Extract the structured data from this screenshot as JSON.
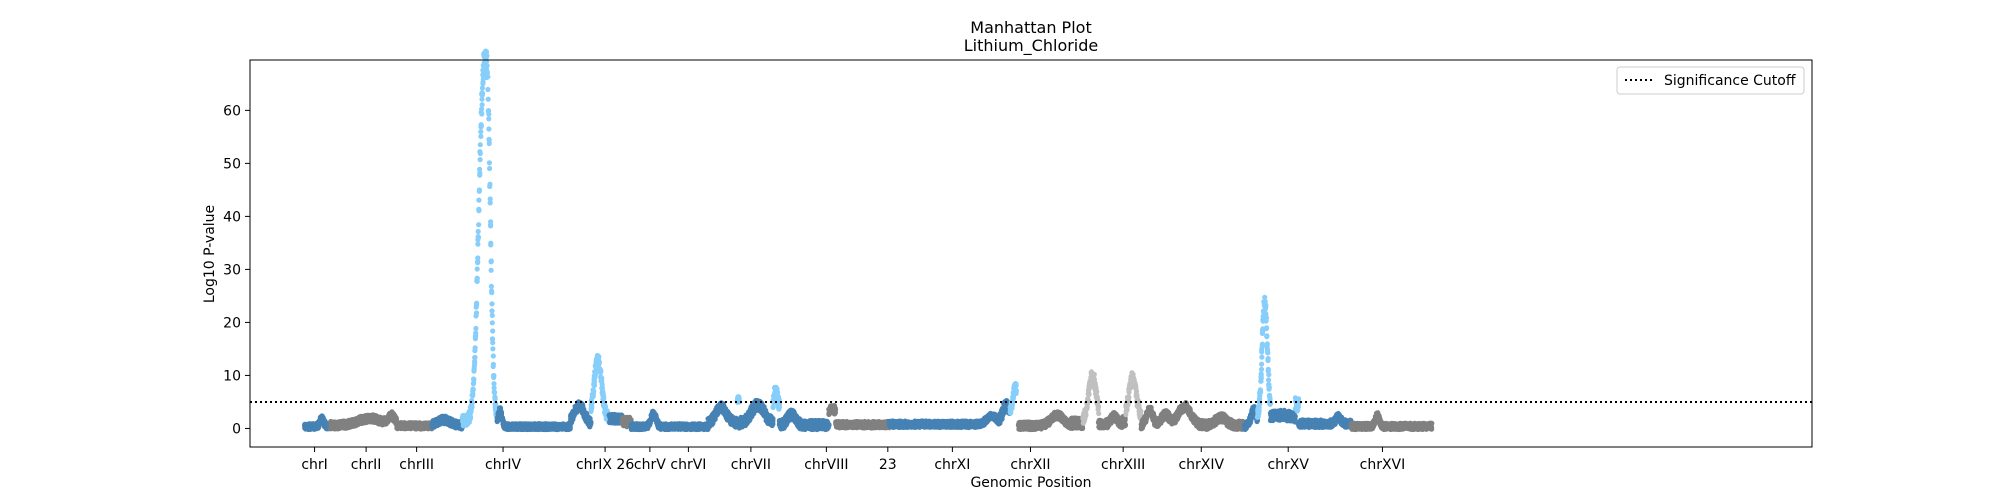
{
  "chart_data": {
    "type": "scatter",
    "title": "Manhattan Plot",
    "subtitle": "Lithium_Chloride",
    "xlabel": "Genomic Position",
    "ylabel": "Log10 P-value",
    "xlim": [
      0,
      30
    ],
    "ylim": [
      -3.5,
      69.5
    ],
    "yticks": [
      0,
      10,
      20,
      30,
      40,
      50,
      60
    ],
    "grid": false,
    "legend": {
      "position": "top-right",
      "entries": [
        {
          "label": "Significance Cutoff",
          "style": "dotted",
          "color": "#000000"
        }
      ]
    },
    "significance_cutoff": 5,
    "colors": {
      "blue": "#4682b4",
      "lightblue": "#87cefa",
      "gray": "#808080",
      "lightgray": "#c0c0c0"
    },
    "xtick_labels": [
      {
        "label": "chrI",
        "x": 1.24
      },
      {
        "label": "chrII",
        "x": 2.23
      },
      {
        "label": "chrIII",
        "x": 3.2
      },
      {
        "label": "chrIV",
        "x": 4.86
      },
      {
        "label": "chrIX 26",
        "x": 6.82
      },
      {
        "label": "chrV",
        "x": 7.68
      },
      {
        "label": "chrVI",
        "x": 8.42
      },
      {
        "label": "chrVII",
        "x": 9.62
      },
      {
        "label": "chrVIII",
        "x": 11.07
      },
      {
        "label": "23",
        "x": 12.25
      },
      {
        "label": "chrXI",
        "x": 13.49
      },
      {
        "label": "chrXII",
        "x": 14.99
      },
      {
        "label": "chrXIII",
        "x": 16.77
      },
      {
        "label": "chrXIV",
        "x": 18.27
      },
      {
        "label": "chrXV",
        "x": 19.94
      },
      {
        "label": "chrXVI",
        "x": 21.75
      }
    ],
    "series": [
      {
        "color": "blue",
        "start": 1.05,
        "end": 1.5,
        "base": 0.3,
        "noise": 0.6,
        "peaks": [
          {
            "x": 1.38,
            "h": 1.5,
            "w": 0.04
          }
        ]
      },
      {
        "color": "gray",
        "start": 1.55,
        "end": 2.82,
        "base": 0.6,
        "noise": 0.7,
        "peaks": [
          {
            "x": 2.3,
            "h": 1.3,
            "w": 0.22
          },
          {
            "x": 2.72,
            "h": 1.6,
            "w": 0.07
          }
        ]
      },
      {
        "color": "gray",
        "start": 2.82,
        "end": 3.5,
        "base": 0.5,
        "noise": 0.6,
        "peaks": []
      },
      {
        "color": "blue",
        "start": 3.5,
        "end": 4.08,
        "base": 0.6,
        "noise": 0.7,
        "peaks": [
          {
            "x": 3.72,
            "h": 1.0,
            "w": 0.12
          }
        ]
      },
      {
        "color": "lightblue",
        "start": 4.08,
        "end": 4.75,
        "base": 1.5,
        "noise": 1.0,
        "peaks": [
          {
            "x": 4.48,
            "h": 62,
            "w": 0.09
          },
          {
            "x": 4.58,
            "h": 25,
            "w": 0.05
          }
        ]
      },
      {
        "color": "blue",
        "start": 4.75,
        "end": 6.15,
        "base": 0.3,
        "noise": 0.6,
        "peaks": [
          {
            "x": 4.8,
            "h": 3.0,
            "w": 0.04
          }
        ]
      },
      {
        "color": "blue",
        "start": 6.15,
        "end": 6.55,
        "base": 0.8,
        "noise": 0.9,
        "peaks": [
          {
            "x": 6.32,
            "h": 3.5,
            "w": 0.1
          }
        ]
      },
      {
        "color": "lightblue",
        "start": 6.55,
        "end": 6.9,
        "base": 2.0,
        "noise": 1.0,
        "peaks": [
          {
            "x": 6.68,
            "h": 11,
            "w": 0.07
          }
        ]
      },
      {
        "color": "blue",
        "start": 6.9,
        "end": 7.15,
        "base": 1.8,
        "noise": 0.8,
        "peaks": []
      },
      {
        "color": "gray",
        "start": 7.15,
        "end": 7.32,
        "base": 1.2,
        "noise": 0.9,
        "peaks": []
      },
      {
        "color": "blue",
        "start": 7.32,
        "end": 8.8,
        "base": 0.3,
        "noise": 0.6,
        "peaks": [
          {
            "x": 7.75,
            "h": 2.5,
            "w": 0.05
          }
        ]
      },
      {
        "color": "blue",
        "start": 8.8,
        "end": 9.36,
        "base": 1.0,
        "noise": 0.9,
        "peaks": [
          {
            "x": 9.05,
            "h": 3.0,
            "w": 0.1
          }
        ]
      },
      {
        "color": "lightblue",
        "start": 9.36,
        "end": 9.4,
        "base": 5.5,
        "noise": 0.6,
        "peaks": []
      },
      {
        "color": "blue",
        "start": 9.4,
        "end": 10.05,
        "base": 1.0,
        "noise": 1.0,
        "peaks": [
          {
            "x": 9.75,
            "h": 3.5,
            "w": 0.12
          }
        ]
      },
      {
        "color": "lightblue",
        "start": 10.05,
        "end": 10.17,
        "base": 4.0,
        "noise": 1.2,
        "peaks": [
          {
            "x": 10.1,
            "h": 3.5,
            "w": 0.03
          }
        ]
      },
      {
        "color": "blue",
        "start": 10.17,
        "end": 11.12,
        "base": 0.6,
        "noise": 0.9,
        "peaks": [
          {
            "x": 10.4,
            "h": 2.0,
            "w": 0.08
          }
        ]
      },
      {
        "color": "gray",
        "start": 11.12,
        "end": 11.25,
        "base": 3.5,
        "noise": 0.8,
        "peaks": []
      },
      {
        "color": "gray",
        "start": 11.25,
        "end": 12.28,
        "base": 0.7,
        "noise": 0.6,
        "peaks": []
      },
      {
        "color": "blue",
        "start": 12.28,
        "end": 14.4,
        "base": 0.8,
        "noise": 0.6,
        "peaks": [
          {
            "x": 14.25,
            "h": 1.5,
            "w": 0.1
          }
        ]
      },
      {
        "color": "blue",
        "start": 14.4,
        "end": 14.6,
        "base": 2.0,
        "noise": 1.0,
        "peaks": [
          {
            "x": 14.52,
            "h": 2.5,
            "w": 0.05
          }
        ]
      },
      {
        "color": "lightblue",
        "start": 14.6,
        "end": 14.72,
        "base": 3.5,
        "noise": 1.0,
        "peaks": [
          {
            "x": 14.7,
            "h": 4.0,
            "w": 0.04
          }
        ]
      },
      {
        "color": "gray",
        "start": 14.76,
        "end": 15.78,
        "base": 0.5,
        "noise": 0.7,
        "peaks": [
          {
            "x": 15.5,
            "h": 2.0,
            "w": 0.12
          }
        ]
      },
      {
        "color": "gray",
        "start": 15.78,
        "end": 16.0,
        "base": 1.0,
        "noise": 1.0,
        "peaks": []
      },
      {
        "color": "lightgray",
        "start": 16.0,
        "end": 16.3,
        "base": 1.5,
        "noise": 1.0,
        "peaks": [
          {
            "x": 16.18,
            "h": 8.5,
            "w": 0.07
          }
        ]
      },
      {
        "color": "gray",
        "start": 16.3,
        "end": 16.75,
        "base": 0.8,
        "noise": 0.8,
        "peaks": [
          {
            "x": 16.6,
            "h": 1.5,
            "w": 0.06
          }
        ]
      },
      {
        "color": "gray",
        "start": 16.75,
        "end": 16.82,
        "base": 1.5,
        "noise": 1.0,
        "peaks": []
      },
      {
        "color": "lightgray",
        "start": 16.82,
        "end": 17.12,
        "base": 2.0,
        "noise": 1.0,
        "peaks": [
          {
            "x": 16.95,
            "h": 7.5,
            "w": 0.07
          }
        ]
      },
      {
        "color": "gray",
        "start": 17.12,
        "end": 19.1,
        "base": 0.6,
        "noise": 0.8,
        "peaks": [
          {
            "x": 17.28,
            "h": 2.8,
            "w": 0.06
          },
          {
            "x": 17.58,
            "h": 2.0,
            "w": 0.08
          },
          {
            "x": 17.95,
            "h": 3.5,
            "w": 0.12
          },
          {
            "x": 18.65,
            "h": 1.5,
            "w": 0.1
          }
        ]
      },
      {
        "color": "blue",
        "start": 19.1,
        "end": 19.35,
        "base": 0.5,
        "noise": 0.7,
        "peaks": [
          {
            "x": 19.28,
            "h": 3.0,
            "w": 0.05
          }
        ]
      },
      {
        "color": "lightblue",
        "start": 19.35,
        "end": 19.6,
        "base": 2.0,
        "noise": 1.0,
        "peaks": [
          {
            "x": 19.49,
            "h": 22,
            "w": 0.05
          }
        ]
      },
      {
        "color": "blue",
        "start": 19.6,
        "end": 20.08,
        "base": 1.8,
        "noise": 0.9,
        "peaks": [
          {
            "x": 19.8,
            "h": 0.7,
            "w": 0.2
          }
        ]
      },
      {
        "color": "lightblue",
        "start": 20.08,
        "end": 20.14,
        "base": 4.5,
        "noise": 1.4,
        "peaks": []
      },
      {
        "color": "blue",
        "start": 20.14,
        "end": 21.15,
        "base": 0.9,
        "noise": 0.7,
        "peaks": [
          {
            "x": 20.9,
            "h": 1.2,
            "w": 0.05
          }
        ]
      },
      {
        "color": "gray",
        "start": 21.15,
        "end": 22.7,
        "base": 0.4,
        "noise": 0.6,
        "peaks": [
          {
            "x": 21.65,
            "h": 2.0,
            "w": 0.04
          }
        ]
      }
    ]
  }
}
